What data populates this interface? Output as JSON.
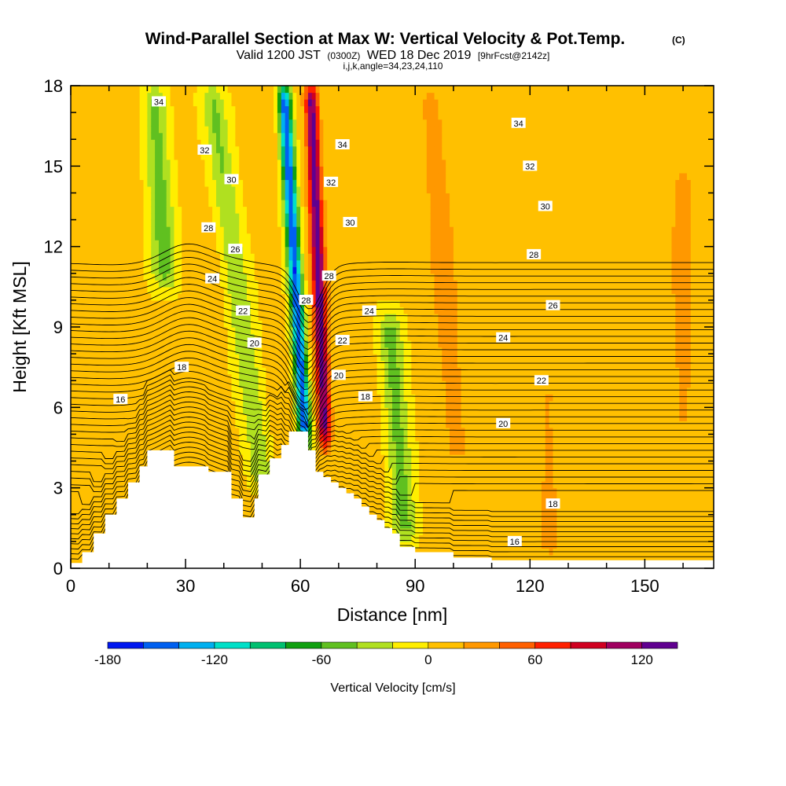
{
  "chart_data": {
    "type": "heatmap",
    "title": "Wind-Parallel Section at Max W: Vertical Velocity & Pot.Temp.",
    "title_mark": "(C)",
    "subtitle": {
      "part1": "Valid 1200 JST",
      "part2": "(0300Z)",
      "part3": "WED 18 Dec 2019",
      "part4": "[9hrFcst@2142z]"
    },
    "subtitle2": "i,j,k,angle=34,23,24,110",
    "xlabel": "Distance [nm]",
    "ylabel": "Height [Kft MSL]",
    "xlim": [
      0,
      168
    ],
    "ylim": [
      0,
      18
    ],
    "x_ticks": [
      0,
      30,
      60,
      90,
      120,
      150
    ],
    "y_ticks": [
      0,
      3,
      6,
      9,
      12,
      15,
      18
    ],
    "colorbar": {
      "label": "Vertical Velocity [cm/s]",
      "ticks": [
        -180,
        -120,
        -60,
        0,
        60,
        120
      ],
      "levels": [
        -180,
        -160,
        -140,
        -120,
        -100,
        -80,
        -60,
        -40,
        -20,
        0,
        20,
        40,
        60,
        80,
        100,
        120,
        140
      ],
      "colors": [
        "#0018f0",
        "#0060f0",
        "#00b0f0",
        "#00e0c8",
        "#00c070",
        "#10a010",
        "#60c020",
        "#b0e020",
        "#ffee00",
        "#ffc000",
        "#ff9800",
        "#ff6000",
        "#ff2000",
        "#d00020",
        "#a00060",
        "#600090"
      ]
    },
    "vertical_velocity_features": [
      {
        "x": 59,
        "y_bottom": 4.6,
        "y_top": 18,
        "lean": -0.42,
        "w": -165
      },
      {
        "x": 65,
        "y_bottom": 4.6,
        "y_top": 18,
        "lean": -0.28,
        "w": 125
      },
      {
        "x": 83,
        "y_bottom": 1.0,
        "y_top": 9.5,
        "lean": -0.5,
        "w": -55
      },
      {
        "x": 44,
        "y_bottom": 3.0,
        "y_top": 18,
        "lean": -0.9,
        "w": -45
      },
      {
        "x": 25,
        "y_bottom": 10.5,
        "y_top": 18,
        "lean": -0.4,
        "w": -55
      },
      {
        "x": 98,
        "y_bottom": 4.0,
        "y_top": 18,
        "lean": -0.5,
        "w": 25
      },
      {
        "x": 125,
        "y_bottom": 0.5,
        "y_top": 7.0,
        "lean": 0,
        "w": 18
      },
      {
        "x": 160,
        "y_bottom": 5.0,
        "y_top": 15.0,
        "lean": 0,
        "w": 20
      }
    ],
    "isentrope_levels": [
      14,
      14.5,
      15,
      15.5,
      16,
      16.5,
      17,
      17.5,
      18,
      18.5,
      19,
      19.5,
      20,
      20.5,
      21,
      21.5,
      22,
      22.5,
      23,
      23.5,
      24,
      24.5,
      25,
      25.5,
      26,
      26.5,
      27,
      27.5,
      28,
      28.5,
      29,
      29.5,
      30,
      30.5,
      31,
      31.5,
      32,
      32.5,
      33,
      33.5,
      34,
      34.5,
      35,
      35.5,
      36
    ],
    "contour_labels": [
      {
        "value": "34",
        "x": 23,
        "y": 17.4
      },
      {
        "value": "32",
        "x": 35,
        "y": 15.6
      },
      {
        "value": "30",
        "x": 42,
        "y": 14.5
      },
      {
        "value": "28",
        "x": 36,
        "y": 12.7
      },
      {
        "value": "26",
        "x": 43,
        "y": 11.9
      },
      {
        "value": "24",
        "x": 37,
        "y": 10.8
      },
      {
        "value": "22",
        "x": 45,
        "y": 9.6
      },
      {
        "value": "20",
        "x": 48,
        "y": 8.4
      },
      {
        "value": "18",
        "x": 29,
        "y": 7.5
      },
      {
        "value": "16",
        "x": 13,
        "y": 6.3
      },
      {
        "value": "34",
        "x": 71,
        "y": 15.8
      },
      {
        "value": "32",
        "x": 68,
        "y": 14.4
      },
      {
        "value": "30",
        "x": 73,
        "y": 12.9
      },
      {
        "value": "28",
        "x": 67.5,
        "y": 10.9
      },
      {
        "value": "28",
        "x": 61.5,
        "y": 10.0
      },
      {
        "value": "24",
        "x": 78,
        "y": 9.6
      },
      {
        "value": "22",
        "x": 71,
        "y": 8.5
      },
      {
        "value": "20",
        "x": 70,
        "y": 7.2
      },
      {
        "value": "18",
        "x": 77,
        "y": 6.4
      },
      {
        "value": "34",
        "x": 117,
        "y": 16.6
      },
      {
        "value": "32",
        "x": 120,
        "y": 15.0
      },
      {
        "value": "30",
        "x": 124,
        "y": 13.5
      },
      {
        "value": "28",
        "x": 121,
        "y": 11.7
      },
      {
        "value": "26",
        "x": 126,
        "y": 9.8
      },
      {
        "value": "24",
        "x": 113,
        "y": 8.6
      },
      {
        "value": "22",
        "x": 123,
        "y": 7.0
      },
      {
        "value": "20",
        "x": 113,
        "y": 5.4
      },
      {
        "value": "18",
        "x": 126,
        "y": 2.4
      },
      {
        "value": "16",
        "x": 116,
        "y": 1.0
      }
    ]
  }
}
